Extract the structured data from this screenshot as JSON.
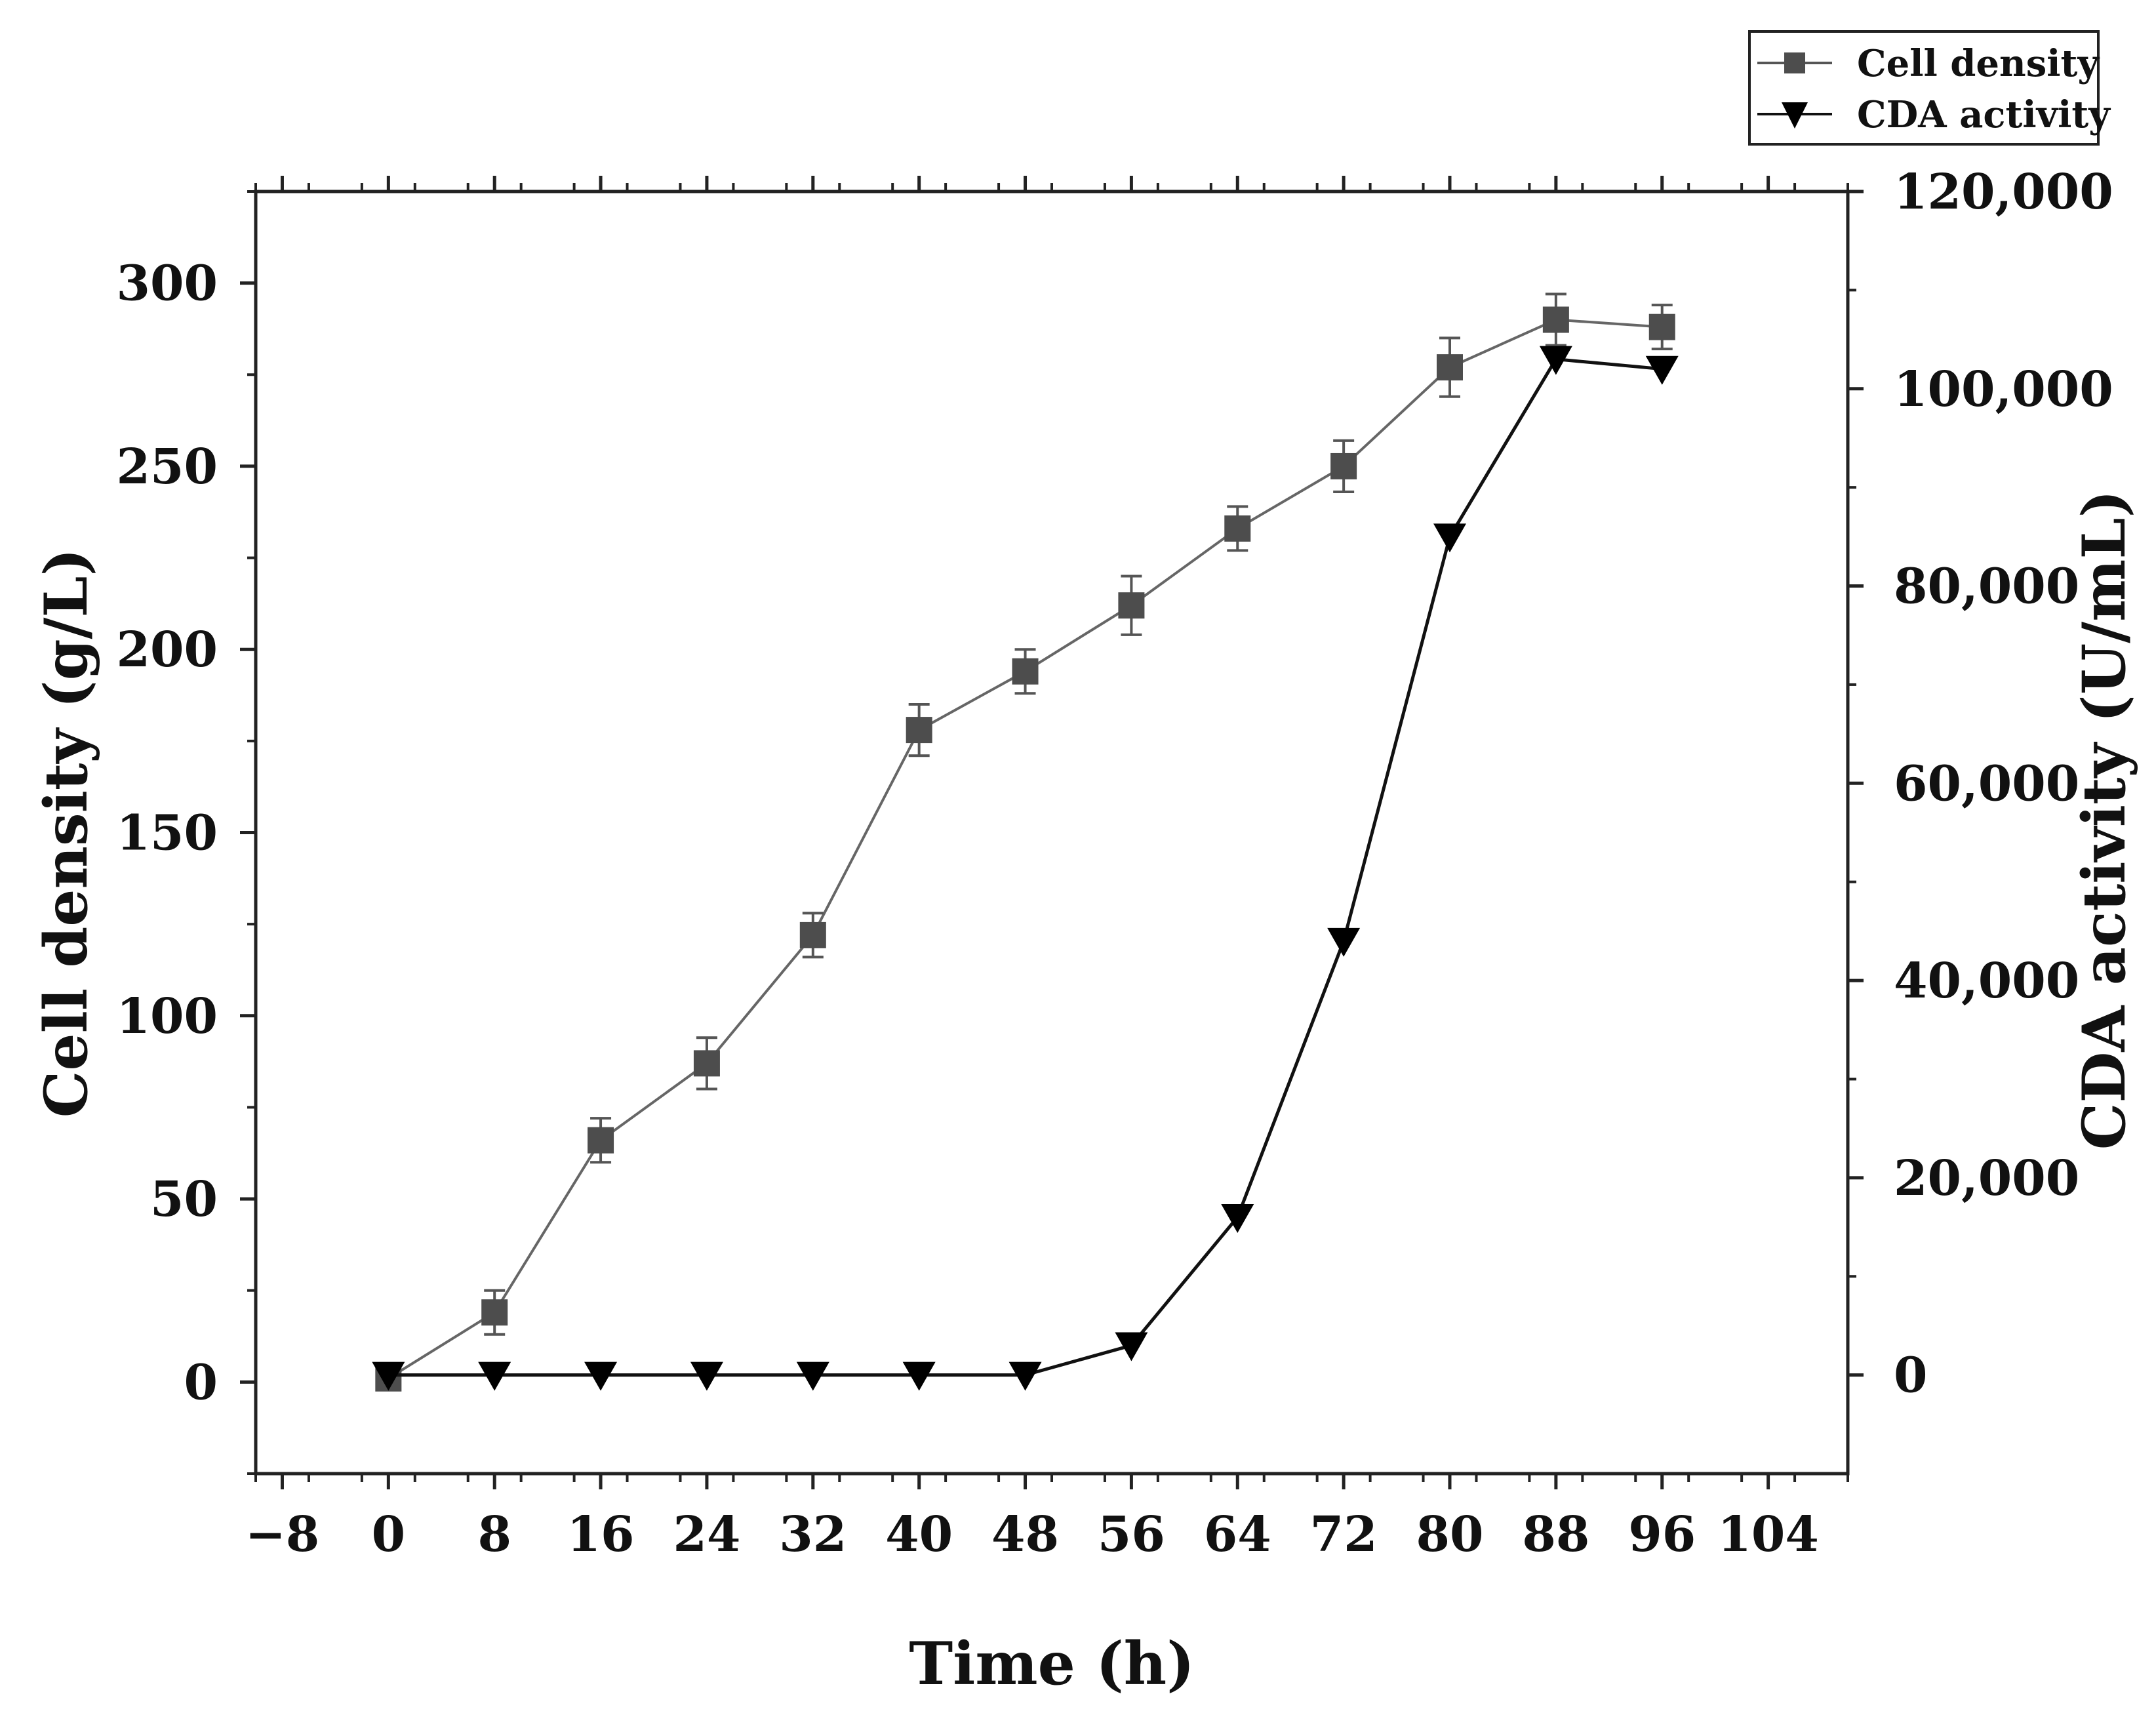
{
  "chart_data": {
    "type": "line",
    "title": "",
    "xlabel": "Time (h)",
    "ylabel": "Cell density (g/L)",
    "y2label": "CDA activity (U/mL)",
    "xlim": [
      -10,
      110
    ],
    "ylim": [
      -25,
      325
    ],
    "y2lim": [
      -10000,
      120000
    ],
    "x_ticks": [
      -8,
      0,
      8,
      16,
      24,
      32,
      40,
      48,
      56,
      64,
      72,
      80,
      88,
      96,
      104
    ],
    "x_tick_labels": [
      "−8",
      "0",
      "8",
      "16",
      "24",
      "32",
      "40",
      "48",
      "56",
      "64",
      "72",
      "80",
      "88",
      "96",
      "104"
    ],
    "y_ticks": [
      0,
      50,
      100,
      150,
      200,
      250,
      300
    ],
    "y_tick_labels": [
      "0",
      "50",
      "100",
      "150",
      "200",
      "250",
      "300"
    ],
    "y2_ticks": [
      0,
      20000,
      40000,
      60000,
      80000,
      100000,
      120000
    ],
    "y2_tick_labels": [
      "0",
      "20,000",
      "40,000",
      "60,000",
      "80,000",
      "100,000",
      "120,000"
    ],
    "legend_position": "top-right, above plot",
    "grid": false,
    "series": [
      {
        "name": "Cell density",
        "axis": "left",
        "marker": "square",
        "color": "#4d4d4d",
        "x": [
          0,
          8,
          16,
          24,
          32,
          40,
          48,
          56,
          64,
          72,
          80,
          88,
          96
        ],
        "values": [
          1,
          19,
          66,
          87,
          122,
          178,
          194,
          212,
          233,
          250,
          277,
          290,
          288
        ],
        "errors": [
          2,
          6,
          6,
          7,
          6,
          7,
          6,
          8,
          6,
          7,
          8,
          7,
          6
        ]
      },
      {
        "name": "CDA activity",
        "axis": "right",
        "marker": "triangle-down",
        "color": "#000000",
        "x": [
          0,
          8,
          16,
          24,
          32,
          40,
          48,
          56,
          64,
          72,
          80,
          88,
          96
        ],
        "values": [
          0,
          0,
          0,
          0,
          0,
          0,
          0,
          3000,
          16000,
          44000,
          85000,
          103000,
          102000
        ]
      }
    ]
  }
}
